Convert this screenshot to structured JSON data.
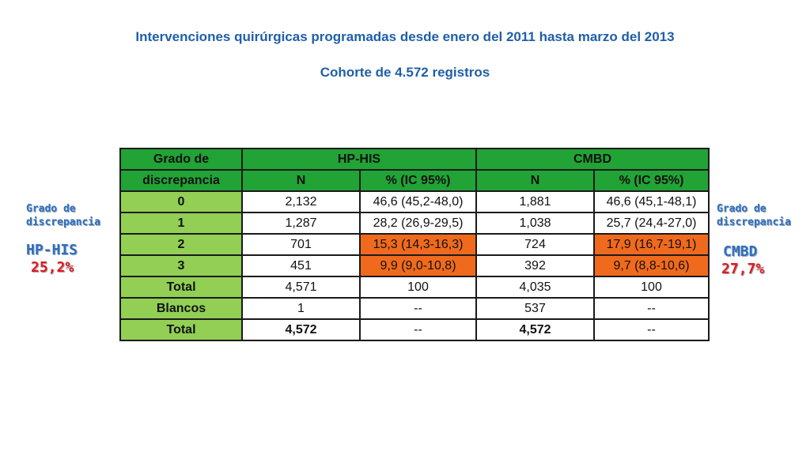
{
  "title_line1": "Intervenciones quirúrgicas programadas desde enero del 2011 hasta marzo del 2013",
  "title_line2": "Cohorte de 4.572 registros",
  "left_note": {
    "label1": "Grado de",
    "label2": "discrepancia",
    "system": "HP-HIS",
    "percent": "25,2%"
  },
  "right_note": {
    "label1": "Grado de",
    "label2": "discrepancia",
    "system": "CMBD",
    "percent": "27,7%"
  },
  "table": {
    "header_row_label_line1": "Grado de",
    "header_row_label_line2": "discrepancia",
    "group1": "HP-HIS",
    "group2": "CMBD",
    "sub_n": "N",
    "sub_pct": "% (IC 95%)",
    "rows": [
      {
        "label": "0",
        "hp_n": "2,132",
        "hp_pct": "46,6 (45,2-48,0)",
        "cm_n": "1,881",
        "cm_pct": "46,6 (45,1-48,1)"
      },
      {
        "label": "1",
        "hp_n": "1,287",
        "hp_pct": "28,2 (26,9-29,5)",
        "cm_n": "1,038",
        "cm_pct": "25,7 (24,4-27,0)"
      },
      {
        "label": "2",
        "hp_n": "701",
        "hp_pct": "15,3 (14,3-16,3)",
        "cm_n": "724",
        "cm_pct": "17,9 (16,7-19,1)"
      },
      {
        "label": "3",
        "hp_n": "451",
        "hp_pct": "9,9 (9,0-10,8)",
        "cm_n": "392",
        "cm_pct": "9,7 (8,8-10,6)"
      },
      {
        "label": "Total",
        "hp_n": "4,571",
        "hp_pct": "100",
        "cm_n": "4,035",
        "cm_pct": "100"
      },
      {
        "label": "Blancos",
        "hp_n": "1",
        "hp_pct": "--",
        "cm_n": "537",
        "cm_pct": "--"
      },
      {
        "label": "Total",
        "hp_n": "4,572",
        "hp_pct": "--",
        "cm_n": "4,572",
        "cm_pct": "--"
      }
    ]
  },
  "colors": {
    "header_green": "#21a336",
    "label_green": "#92cf54",
    "highlight_orange": "#f06a1d",
    "title_blue": "#1f5fa8"
  }
}
